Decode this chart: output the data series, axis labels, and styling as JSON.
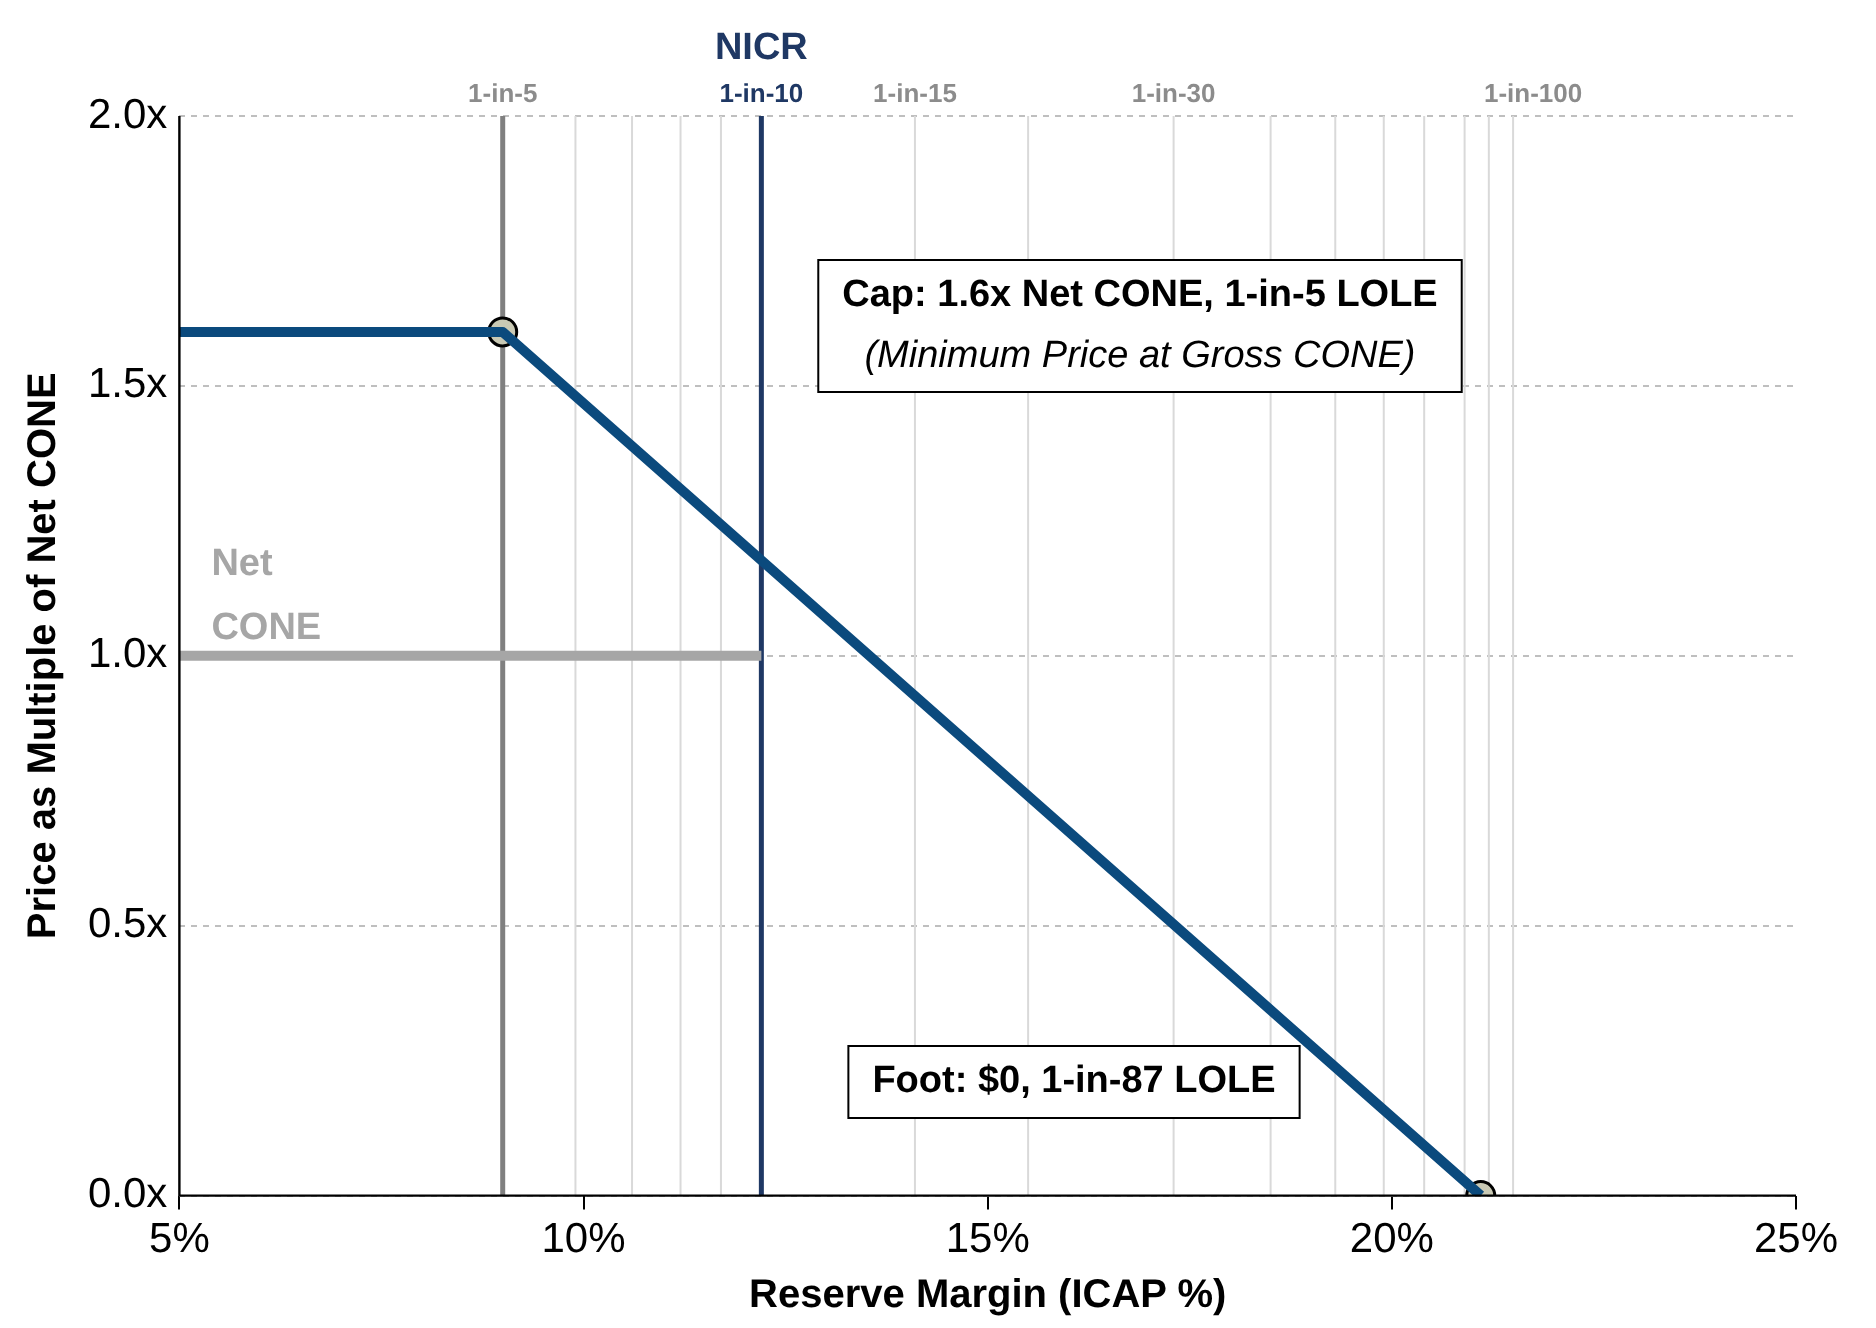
{
  "chart_data": {
    "type": "line",
    "xlabel": "Reserve Margin (ICAP %)",
    "ylabel": "Price as Multiple of Net CONE",
    "xlim": [
      5,
      25
    ],
    "xticks": [
      {
        "value": 5,
        "label": "5%"
      },
      {
        "value": 10,
        "label": "10%"
      },
      {
        "value": 15,
        "label": "15%"
      },
      {
        "value": 20,
        "label": "20%"
      },
      {
        "value": 25,
        "label": "25%"
      }
    ],
    "ylim": [
      0,
      2
    ],
    "yticks": [
      {
        "value": 0,
        "label": "0.0x"
      },
      {
        "value": 0.5,
        "label": "0.5x"
      },
      {
        "value": 1,
        "label": "1.0x"
      },
      {
        "value": 1.5,
        "label": "1.5x"
      },
      {
        "value": 2,
        "label": "2.0x"
      }
    ],
    "grid": "y",
    "legend": false,
    "series": [
      {
        "type": "line",
        "name": "Net CONE",
        "color": "#a6a6a6",
        "x": [
          5,
          12.2
        ],
        "values": [
          1,
          1
        ],
        "marker": "none"
      },
      {
        "type": "line",
        "color": "#0b4a7d",
        "x": [
          5,
          9,
          21.1
        ],
        "values": [
          1.6,
          1.6,
          0
        ],
        "marker": "none"
      },
      {
        "type": "scatter",
        "color": "#c9c9b4",
        "x": [
          9,
          21.1
        ],
        "values": [
          1.6,
          0
        ],
        "marker": "circle"
      }
    ],
    "ref_lines": [
      {
        "axis": "x",
        "value": 9.0,
        "label": "1-in-5",
        "color": "#808080"
      },
      {
        "axis": "x",
        "value": 9.9,
        "label": null,
        "color": "#d9d9d9"
      },
      {
        "axis": "x",
        "value": 10.6,
        "label": null,
        "color": "#d9d9d9"
      },
      {
        "axis": "x",
        "value": 11.2,
        "label": null,
        "color": "#d9d9d9"
      },
      {
        "axis": "x",
        "value": 11.7,
        "label": null,
        "color": "#d9d9d9"
      },
      {
        "axis": "x",
        "value": 12.2,
        "label": "1-in-10",
        "color": "#1f3864"
      },
      {
        "axis": "x",
        "value": 14.1,
        "label": "1-in-15",
        "color": "#d9d9d9"
      },
      {
        "axis": "x",
        "value": 15.5,
        "label": null,
        "color": "#d9d9d9"
      },
      {
        "axis": "x",
        "value": 17.3,
        "label": "1-in-30",
        "color": "#d9d9d9"
      },
      {
        "axis": "x",
        "value": 18.5,
        "label": null,
        "color": "#d9d9d9"
      },
      {
        "axis": "x",
        "value": 19.3,
        "label": null,
        "color": "#d9d9d9"
      },
      {
        "axis": "x",
        "value": 19.9,
        "label": null,
        "color": "#d9d9d9"
      },
      {
        "axis": "x",
        "value": 20.4,
        "label": null,
        "color": "#d9d9d9"
      },
      {
        "axis": "x",
        "value": 20.9,
        "label": null,
        "color": "#d9d9d9"
      },
      {
        "axis": "x",
        "value": 21.2,
        "label": null,
        "color": "#d9d9d9"
      },
      {
        "axis": "x",
        "value": 21.5,
        "label": "1-in-100",
        "color": "#d9d9d9"
      }
    ],
    "annotations": [
      {
        "text": "NICR",
        "x": 12.2,
        "y": 2
      },
      "Cap: 1.6x Net CONE, 1-in-5 LOLE",
      "(Minimum Price at Gross CONE)",
      "Foot: $0, 1-in-87 LOLE"
    ]
  }
}
